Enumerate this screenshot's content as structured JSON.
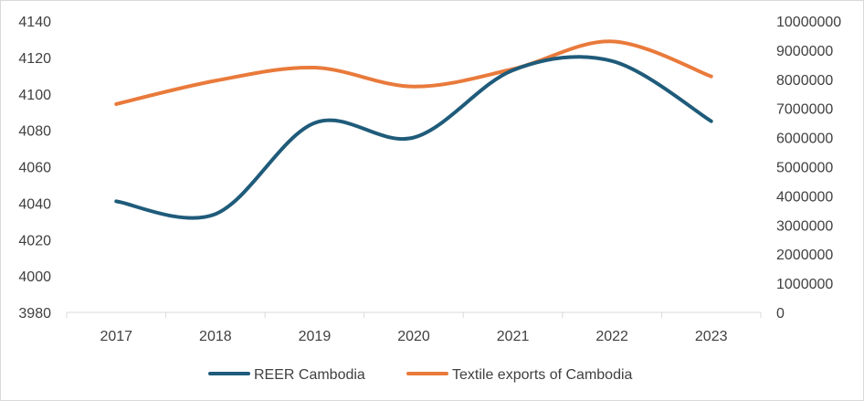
{
  "chart_data": {
    "type": "line",
    "categories": [
      "2017",
      "2018",
      "2019",
      "2020",
      "2021",
      "2022",
      "2023"
    ],
    "series": [
      {
        "name": "REER Cambodia",
        "axis": "left",
        "color": "#1f5b7a",
        "values": [
          4041,
          4034,
          4084,
          4076,
          4113,
          4118,
          4085
        ]
      },
      {
        "name": "Textile exports of Cambodia",
        "axis": "right",
        "color": "#e97a3b",
        "values": [
          7150000,
          7950000,
          8400000,
          7750000,
          8350000,
          9300000,
          8100000
        ]
      }
    ],
    "y_left": {
      "ylim": [
        3980,
        4140
      ],
      "ticks": [
        "3980",
        "4000",
        "4020",
        "4040",
        "4060",
        "4080",
        "4100",
        "4120",
        "4140"
      ]
    },
    "y_right": {
      "ylim": [
        0,
        10000000
      ],
      "ticks": [
        "0",
        "1000000",
        "2000000",
        "3000000",
        "4000000",
        "5000000",
        "6000000",
        "7000000",
        "8000000",
        "9000000",
        "10000000"
      ]
    },
    "grid": false,
    "smooth": true,
    "legend_position": "bottom"
  }
}
